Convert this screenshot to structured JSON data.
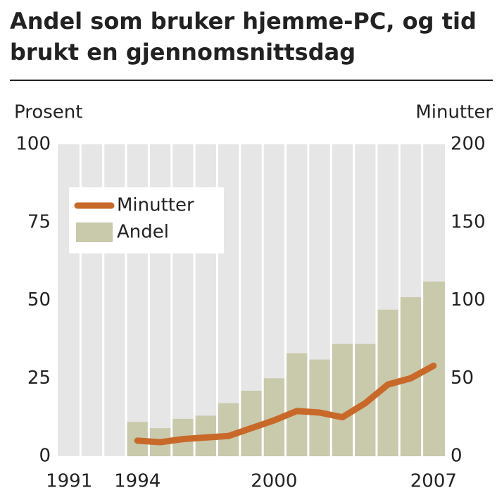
{
  "chart_data": {
    "type": "bar",
    "title": "Andel som bruker hjemme-PC, og tid brukt en gjennomsnittsdag",
    "ylabel": "Prosent",
    "y2label": "Minutter",
    "categories": [
      "1991",
      null,
      null,
      "1994",
      null,
      null,
      null,
      null,
      null,
      "2000",
      null,
      null,
      null,
      null,
      null,
      null,
      "2007"
    ],
    "series": [
      {
        "name": "Minutter",
        "type": "line",
        "axis": "y2",
        "color": "#c8692a",
        "values": [
          null,
          null,
          null,
          10,
          9,
          11,
          12,
          13,
          18,
          23,
          29,
          28,
          25,
          34,
          46,
          50,
          58
        ]
      },
      {
        "name": "Andel",
        "type": "bar",
        "color": "#c9c9ac",
        "values": [
          null,
          null,
          null,
          11,
          9,
          12,
          13,
          17,
          21,
          25,
          33,
          31,
          36,
          36,
          47,
          51,
          56
        ]
      }
    ],
    "ylim": [
      0,
      100
    ],
    "yticks": [
      0,
      25,
      50,
      75,
      100
    ],
    "y2lim": [
      0,
      200
    ],
    "y2ticks": [
      0,
      50,
      100,
      150,
      200
    ],
    "plot_background": "#e6e6e6",
    "legend": "upper left"
  }
}
